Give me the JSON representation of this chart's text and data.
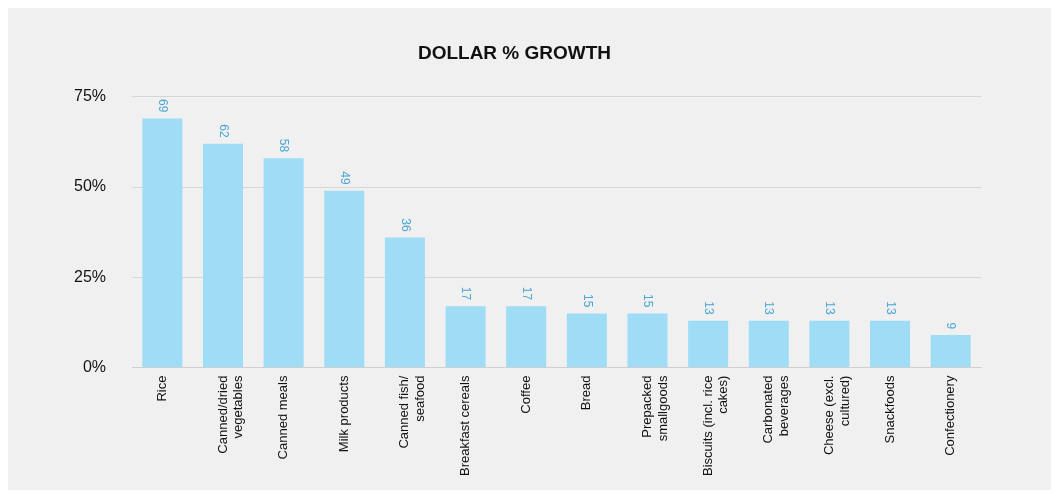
{
  "chart_data": {
    "type": "bar",
    "title": "DOLLAR % GROWTH",
    "categories": [
      "Rice",
      "Canned/dried vegetables",
      "Canned meals",
      "Milk products",
      "Canned fish/ seafood",
      "Breakfast cereals",
      "Coffee",
      "Bread",
      "Prepacked smallgoods",
      "Biscuits (incl. rice cakes)",
      "Carbonated beverages",
      "Cheese (excl. cultured)",
      "Snackfoods",
      "Confectionery"
    ],
    "values": [
      69,
      62,
      58,
      49,
      36,
      17,
      17,
      15,
      15,
      13,
      13,
      13,
      13,
      9
    ],
    "color": "#9fdcf6",
    "ylim": [
      0,
      75
    ],
    "yticks": [
      {
        "value": 0,
        "label": "0%"
      },
      {
        "value": 25,
        "label": "25%"
      },
      {
        "value": 50,
        "label": "50%"
      },
      {
        "value": 75,
        "label": "75%"
      }
    ],
    "grid": "y",
    "legend": false,
    "data_labels": true
  }
}
